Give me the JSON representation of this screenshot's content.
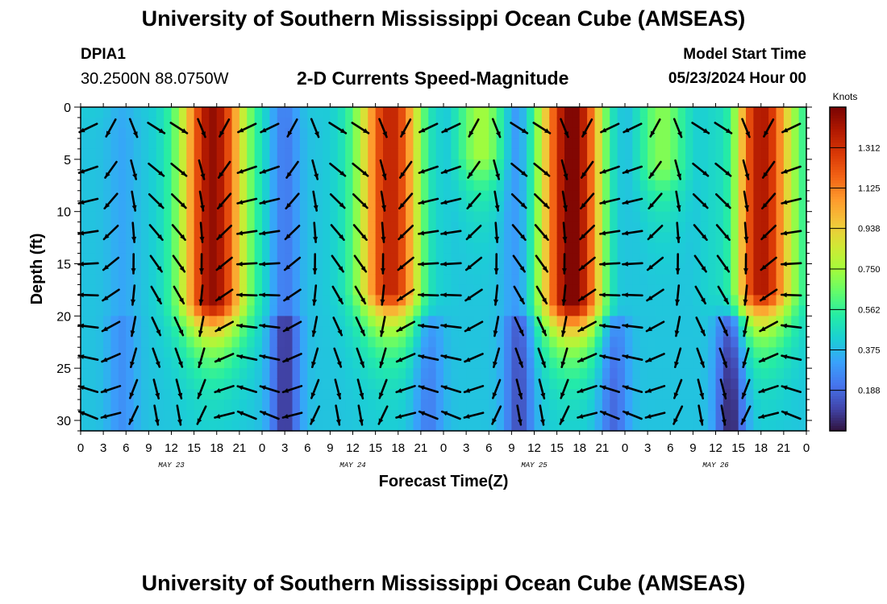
{
  "header": {
    "title": "University of Southern Mississippi Ocean Cube (AMSEAS)",
    "station": "DPIA1",
    "coords": "30.2500N  88.0750W",
    "subtitle": "2-D Currents Speed-Magnitude",
    "start_label": "Model Start Time",
    "start_value": "05/23/2024 Hour 00"
  },
  "footer": {
    "title": "University of Southern Mississippi Ocean Cube (AMSEAS)"
  },
  "chart_data": {
    "type": "heatmap",
    "title": "2-D Currents Speed-Magnitude",
    "xlabel": "Forecast Time(Z)",
    "ylabel": "Depth (ft)",
    "x_range_hours": [
      0,
      96
    ],
    "ylim": [
      0,
      31
    ],
    "x_tick_labels": [
      "0",
      "3",
      "6",
      "9",
      "12",
      "15",
      "18",
      "21",
      "0",
      "3",
      "6",
      "9",
      "12",
      "15",
      "18",
      "21",
      "0",
      "3",
      "6",
      "9",
      "12",
      "15",
      "18",
      "21",
      "0",
      "3",
      "6",
      "9",
      "12",
      "15",
      "18",
      "21",
      "0"
    ],
    "y_ticks": [
      0,
      5,
      10,
      15,
      20,
      25,
      30
    ],
    "y_tick_labels": [
      "0",
      "5",
      "10",
      "15",
      "20",
      "25",
      "30"
    ],
    "date_labels": [
      {
        "hour": 12,
        "label": "MAY 23"
      },
      {
        "hour": 36,
        "label": "MAY 24"
      },
      {
        "hour": 60,
        "label": "MAY 25"
      },
      {
        "hour": 84,
        "label": "MAY 26"
      }
    ],
    "colorbar": {
      "unit": "Knots",
      "min": 0,
      "max": 1.5,
      "ticks": [
        "1.312",
        "1.125",
        "0.938",
        "0.750",
        "0.562",
        "0.375",
        "0.188"
      ],
      "tick_values": [
        1.312,
        1.125,
        0.938,
        0.75,
        0.562,
        0.375,
        0.188
      ]
    },
    "speed_peaks": [
      {
        "hour": 17.5,
        "knots": 1.45,
        "depth_extent_ft": 19
      },
      {
        "hour": 41,
        "knots": 1.35,
        "depth_extent_ft": 18
      },
      {
        "hour": 53,
        "knots": 0.75,
        "depth_extent_ft": 5
      },
      {
        "hour": 65,
        "knots": 1.5,
        "depth_extent_ft": 19
      },
      {
        "hour": 77,
        "knots": 0.7,
        "depth_extent_ft": 6
      },
      {
        "hour": 90,
        "knots": 1.4,
        "depth_extent_ft": 18
      }
    ],
    "speed_lows": [
      {
        "hour": 5.5,
        "knots": 0.3
      },
      {
        "hour": 27,
        "knots": 0.1
      },
      {
        "hour": 46,
        "knots": 0.25
      },
      {
        "hour": 58,
        "knots": 0.15
      },
      {
        "hour": 70.5,
        "knots": 0.2
      },
      {
        "hour": 86,
        "knots": 0.05
      }
    ],
    "vector_hours": [
      1,
      4,
      7,
      10,
      13,
      16,
      19,
      22,
      25,
      28,
      31,
      34,
      37,
      40,
      43,
      46,
      49,
      52,
      55,
      58,
      61,
      64,
      67,
      70,
      73,
      76,
      79,
      82,
      85,
      88,
      91,
      94
    ],
    "vector_depths_ft": [
      2,
      6,
      9,
      12,
      15,
      18,
      21,
      24,
      27,
      29.5
    ]
  },
  "colors": {
    "palette": [
      "#30123b",
      "#4145ab",
      "#4675ed",
      "#39a2fc",
      "#1bcfd4",
      "#24eca6",
      "#61fc6c",
      "#a4fc3b",
      "#d1e835",
      "#f3c63a",
      "#fe9b2d",
      "#f36315",
      "#d93806",
      "#b11901",
      "#7a0403"
    ]
  }
}
